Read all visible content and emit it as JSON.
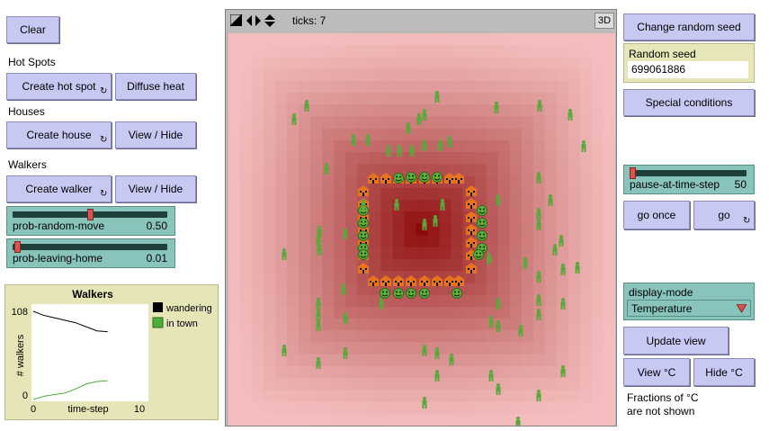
{
  "left": {
    "clear_label": "Clear",
    "hot_spots_title": "Hot Spots",
    "create_hot_spot_label": "Create hot spot",
    "diffuse_heat_label": "Diffuse heat",
    "houses_title": "Houses",
    "create_house_label": "Create house",
    "houses_view_hide_label": "View / Hide",
    "walkers_title": "Walkers",
    "create_walker_label": "Create walker",
    "walkers_view_hide_label": "View / Hide",
    "prob_random_move": {
      "name": "prob-random-move",
      "value": "0.50",
      "fraction": 0.5
    },
    "prob_leaving_home": {
      "name": "prob-leaving-home",
      "value": "0.01",
      "fraction": 0.01
    },
    "forever_icon": "forever-icon"
  },
  "view": {
    "ticks_label": "ticks: 7",
    "three_d_label": "3D"
  },
  "right": {
    "change_seed_label": "Change random seed",
    "random_seed_title": "Random seed",
    "random_seed_value": "699061886",
    "special_conditions_label": "Special conditions",
    "pause_at_time_step": {
      "name": "pause-at-time-step",
      "value": "50",
      "fraction": 0.0
    },
    "go_once_label": "go once",
    "go_label": "go",
    "display_mode_title": "display-mode",
    "display_mode_value": "Temperature",
    "update_view_label": "Update view",
    "view_c_label": "View °C",
    "hide_c_label": "Hide °C",
    "fractions_note_1": "Fractions of °C",
    "fractions_note_2": "are not shown"
  },
  "colors": {
    "button": "#c8c9f2",
    "slider": "#88c3bc",
    "plot_bg": "#e5e5b8",
    "wandering": "#000000",
    "in_town": "#4caf3a",
    "walker": "#5aa83c",
    "house": "#e8731e"
  },
  "chart_data": {
    "type": "line",
    "title": "Walkers",
    "xlabel": "time-step",
    "ylabel": "# walkers",
    "xlim": [
      0,
      10
    ],
    "ylim": [
      0,
      108
    ],
    "x_ticks": [
      "0",
      "10"
    ],
    "y_ticks": [
      "0",
      "108"
    ],
    "legend_placement": "right",
    "series": [
      {
        "name": "wandering",
        "color": "#000000",
        "x": [
          0,
          1,
          2,
          3,
          4,
          5,
          6,
          7
        ],
        "y": [
          108,
          103,
          100,
          97,
          94,
          89,
          84,
          83
        ]
      },
      {
        "name": "in town",
        "color": "#4caf3a",
        "x": [
          0,
          1,
          2,
          3,
          4,
          5,
          6,
          7
        ],
        "y": [
          0,
          4,
          6,
          8,
          13,
          19,
          22,
          23
        ]
      }
    ]
  }
}
